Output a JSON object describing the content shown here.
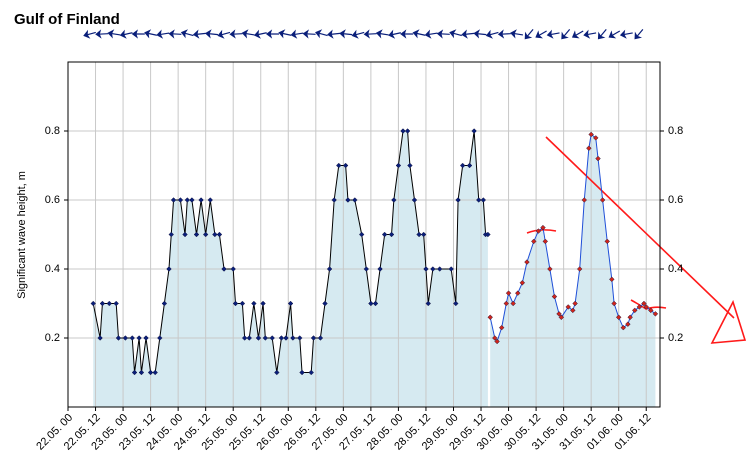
{
  "chart_data": {
    "type": "line",
    "title": "Gulf of Finland",
    "y_label": "Significant wave height, m",
    "xlim": [
      0,
      258
    ],
    "ylim": [
      0,
      1
    ],
    "yticks": [
      0.2,
      0.4,
      0.6,
      0.8
    ],
    "xticks": [
      {
        "value": 0,
        "label": "22.05. 00"
      },
      {
        "value": 12,
        "label": "22.05. 12"
      },
      {
        "value": 24,
        "label": "23.05. 00"
      },
      {
        "value": 36,
        "label": "23.05. 12"
      },
      {
        "value": 48,
        "label": "24.05. 00"
      },
      {
        "value": 60,
        "label": "24.05. 12"
      },
      {
        "value": 72,
        "label": "25.05. 00"
      },
      {
        "value": 84,
        "label": "25.05. 12"
      },
      {
        "value": 96,
        "label": "26.05. 00"
      },
      {
        "value": 108,
        "label": "26.05. 12"
      },
      {
        "value": 120,
        "label": "27.05. 00"
      },
      {
        "value": 132,
        "label": "27.05. 12"
      },
      {
        "value": 144,
        "label": "28.05. 00"
      },
      {
        "value": 156,
        "label": "28.05. 12"
      },
      {
        "value": 168,
        "label": "29.05. 00"
      },
      {
        "value": 180,
        "label": "29.05. 12"
      },
      {
        "value": 192,
        "label": "30.05. 00"
      },
      {
        "value": 204,
        "label": "30.05. 12"
      },
      {
        "value": 216,
        "label": "31.05. 00"
      },
      {
        "value": 228,
        "label": "31.05. 12"
      },
      {
        "value": 240,
        "label": "01.06. 00"
      },
      {
        "value": 252,
        "label": "01.06. 12"
      }
    ],
    "grid": true,
    "fill_color": "#d6eaf1",
    "series": [
      {
        "line_color": "#000000",
        "color": "#0a1f7a",
        "x": [
          11,
          14,
          15,
          18,
          21,
          22,
          25,
          28,
          29,
          31,
          32,
          34,
          36,
          38,
          40,
          42,
          44,
          45,
          46,
          49,
          51,
          52,
          54,
          56,
          58,
          60,
          62,
          64,
          66,
          68,
          72,
          73,
          76,
          77,
          79,
          81,
          83,
          85,
          86,
          89,
          91,
          93,
          95,
          97,
          98,
          101,
          102,
          106,
          107,
          110,
          112,
          114,
          116,
          118,
          121,
          122,
          125,
          128,
          130,
          132,
          134,
          136,
          138,
          141,
          142,
          144,
          146,
          148,
          149,
          151,
          153,
          155,
          156,
          157,
          159,
          162,
          167,
          169,
          170,
          172,
          175,
          177,
          179,
          181,
          182,
          183
        ],
        "values": [
          0.3,
          0.2,
          0.3,
          0.3,
          0.3,
          0.2,
          0.2,
          0.2,
          0.1,
          0.2,
          0.1,
          0.2,
          0.1,
          0.1,
          0.2,
          0.3,
          0.4,
          0.5,
          0.6,
          0.6,
          0.5,
          0.6,
          0.6,
          0.5,
          0.6,
          0.5,
          0.6,
          0.5,
          0.5,
          0.4,
          0.4,
          0.3,
          0.3,
          0.2,
          0.2,
          0.3,
          0.2,
          0.3,
          0.2,
          0.2,
          0.1,
          0.2,
          0.2,
          0.3,
          0.2,
          0.2,
          0.1,
          0.1,
          0.2,
          0.2,
          0.3,
          0.4,
          0.6,
          0.7,
          0.7,
          0.6,
          0.6,
          0.5,
          0.4,
          0.3,
          0.3,
          0.4,
          0.5,
          0.5,
          0.6,
          0.7,
          0.8,
          0.8,
          0.7,
          0.6,
          0.5,
          0.5,
          0.4,
          0.3,
          0.4,
          0.4,
          0.4,
          0.3,
          0.6,
          0.7,
          0.7,
          0.8,
          0.6,
          0.6,
          0.5,
          0.5
        ]
      },
      {
        "line_color": "#1f4fd8",
        "color": "#d0241b",
        "x": [
          184,
          186,
          187,
          189,
          191,
          192,
          194,
          196,
          198,
          200,
          203,
          205,
          207,
          208,
          210,
          212,
          214,
          215,
          218,
          220,
          221,
          223,
          225,
          227,
          228,
          230,
          231,
          233,
          235,
          237,
          238,
          240,
          242,
          244,
          245,
          247,
          249,
          251,
          252,
          254,
          256
        ],
        "values": [
          0.26,
          0.2,
          0.19,
          0.23,
          0.3,
          0.33,
          0.3,
          0.33,
          0.36,
          0.42,
          0.48,
          0.51,
          0.52,
          0.48,
          0.4,
          0.32,
          0.27,
          0.26,
          0.29,
          0.28,
          0.3,
          0.4,
          0.6,
          0.75,
          0.79,
          0.78,
          0.72,
          0.6,
          0.48,
          0.37,
          0.3,
          0.26,
          0.23,
          0.24,
          0.26,
          0.28,
          0.29,
          0.3,
          0.29,
          0.28,
          0.27
        ]
      }
    ]
  }
}
